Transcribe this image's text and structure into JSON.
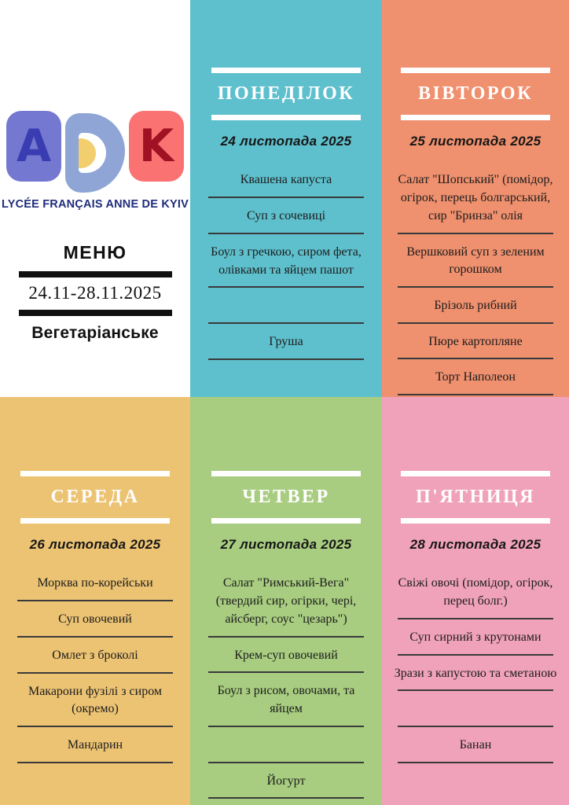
{
  "poster": {
    "logo": {
      "letter_a": "A",
      "letter_k": "K",
      "school_name": "LYCÉE FRANÇAIS ANNE DE KYIV"
    },
    "title": "МЕНЮ",
    "date_range": "24.11-28.11.2025",
    "subtitle": "Вегетаріанське"
  },
  "colors": {
    "ink": "#101010",
    "school-name": "#1f2d7b",
    "logo-a-bg": "#7478d0",
    "logo-a-fg": "#3a3db2",
    "logo-d": "#8ea5d6",
    "logo-d-accent": "#f2ce6e",
    "logo-k-bg": "#fa7372",
    "logo-k-fg": "#a01123"
  },
  "days": [
    {
      "name": "ПОНЕДІЛОК",
      "date": "24 листопада 2025",
      "bg": "#5ec0cd",
      "items": [
        "Квашена капуста",
        "Суп з сочевиці",
        "Боул з гречкою, сиром фета, олівками та яйцем пашот",
        "",
        "Груша"
      ]
    },
    {
      "name": "ВІВТОРОК",
      "date": "25 листопада 2025",
      "bg": "#ef906e",
      "items": [
        "Салат \"Шопський\" (помідор, огірок, перець болгарський, сир \"Бринза\" олія",
        "Вершковий суп з зеленим горошком",
        "Брізоль рибний",
        "Пюре картопляне",
        "Торт Наполеон"
      ]
    },
    {
      "name": "СЕРЕДА",
      "date": "26 листопада 2025",
      "bg": "#ecc373",
      "items": [
        "Морква по-корейськи",
        "Суп овочевий",
        "Омлет з броколі",
        "Макарони фузілі з сиром (окремо)",
        "Мандарин"
      ]
    },
    {
      "name": "ЧЕТВЕР",
      "date": "27 листопада 2025",
      "bg": "#a8cd80",
      "items": [
        "Салат \"Римський-Вега\" (твердий сир, огірки, чері, айсберг, соус \"цезарь\")",
        "Крем-суп овочевий",
        "Боул з рисом, овочами, та яйцем",
        "",
        "Йогурт"
      ]
    },
    {
      "name": "П'ЯТНИЦЯ",
      "date": "28 листопада 2025",
      "bg": "#f0a2bb",
      "items": [
        "Свіжі овочі (помідор, огірок, перец болг.)",
        "Суп сирний з крутонами",
        "Зрази з капустою та сметаною",
        "",
        "Банан"
      ]
    }
  ]
}
